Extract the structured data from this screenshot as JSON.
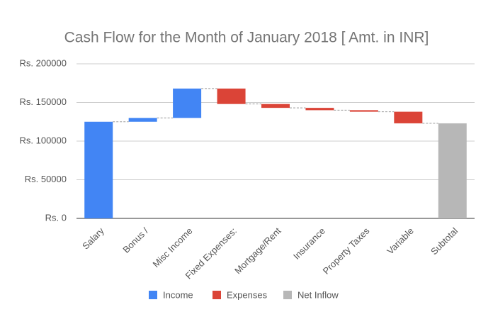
{
  "chart_data": {
    "type": "waterfall",
    "title": "Cash Flow for the Month of January 2018 [ Amt. in INR]",
    "categories": [
      "Salary",
      "Bonus /",
      "Misc Income",
      "Fixed Expenses:",
      "Mortgage/Rent",
      "Insurance",
      "Property Taxes",
      "Variable",
      "Subtotal"
    ],
    "series": [
      {
        "name": "Income",
        "color": "#4285f4",
        "values": [
          125000,
          5000,
          38000,
          null,
          null,
          null,
          null,
          null,
          null
        ]
      },
      {
        "name": "Expenses",
        "color": "#db4437",
        "values": [
          null,
          null,
          null,
          20000,
          5000,
          3000,
          2000,
          15000,
          null
        ]
      },
      {
        "name": "Net Inflow",
        "color": "#b7b7b7",
        "values": [
          null,
          null,
          null,
          null,
          null,
          null,
          null,
          null,
          123000
        ]
      }
    ],
    "ylim": [
      0,
      200000
    ],
    "yticks": [
      {
        "value": 0,
        "label": "Rs. 0"
      },
      {
        "value": 50000,
        "label": "Rs. 50000"
      },
      {
        "value": 100000,
        "label": "Rs. 100000"
      },
      {
        "value": 150000,
        "label": "Rs. 150000"
      },
      {
        "value": 200000,
        "label": "Rs. 200000"
      }
    ],
    "grid": true,
    "legend": "bottom"
  }
}
